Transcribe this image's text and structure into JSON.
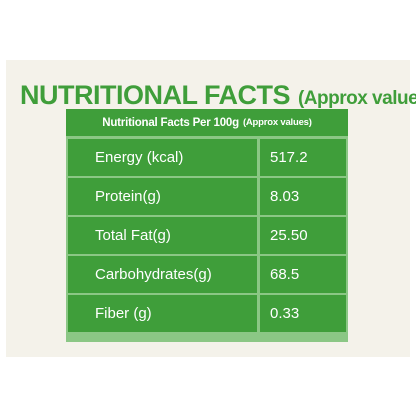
{
  "title": {
    "main": "NUTRITIONAL FACTS",
    "sub": "(Approx values)"
  },
  "table": {
    "header_main": "Nutritional Facts Per 100g",
    "header_sub": "(Approx values)",
    "rows": [
      {
        "name": "Energy (kcal)",
        "value": "517.2"
      },
      {
        "name": "Protein(g)",
        "value": "8.03"
      },
      {
        "name": "Total Fat(g)",
        "value": "25.50"
      },
      {
        "name": "Carbohydrates(g)",
        "value": "68.5"
      },
      {
        "name": "Fiber (g)",
        "value": "0.33"
      }
    ]
  },
  "colors": {
    "brand_green": "#3f9e3a",
    "grid_light_green": "#8bc785",
    "card_background": "#f4f2ea"
  }
}
